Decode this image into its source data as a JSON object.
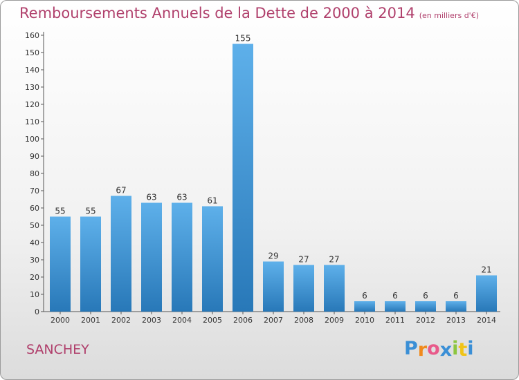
{
  "chart_data": {
    "type": "bar",
    "title": "Remboursements Annuels de la Dette de 2000 à 2014",
    "subtitle": "(en milliers d'€)",
    "categories": [
      "2000",
      "2001",
      "2002",
      "2003",
      "2004",
      "2005",
      "2006",
      "2007",
      "2008",
      "2009",
      "2010",
      "2011",
      "2012",
      "2013",
      "2014"
    ],
    "values": [
      55,
      55,
      67,
      63,
      63,
      61,
      155,
      29,
      27,
      27,
      6,
      6,
      6,
      6,
      21
    ],
    "ylim": [
      0,
      160
    ],
    "yticks": [
      0,
      10,
      20,
      30,
      40,
      50,
      60,
      70,
      80,
      90,
      100,
      110,
      120,
      130,
      140,
      150,
      160
    ],
    "grid": false,
    "colors": {
      "bar_top": "#5eb0ea",
      "bar_bottom": "#2878b8",
      "title": "#b0406c"
    }
  },
  "town_name": "SANCHEY",
  "logo": {
    "letters": [
      "P",
      "r",
      "o",
      "x",
      "i",
      "t",
      "i"
    ],
    "colors": [
      "#3a8fd6",
      "#f08a1c",
      "#e85a8a",
      "#3a8fd6",
      "#8cc63f",
      "#f0c419",
      "#3a8fd6"
    ]
  }
}
